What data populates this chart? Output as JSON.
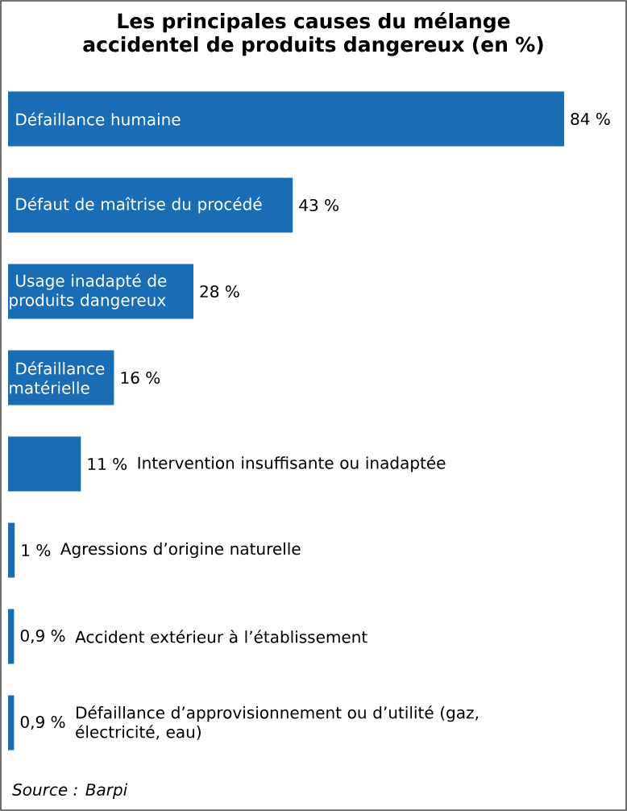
{
  "chart_data": {
    "type": "bar",
    "orientation": "horizontal",
    "title": "Les principales causes du mélange accidentel de produits dangereux (en %)",
    "categories": [
      "Défaillance humaine",
      "Défaut de maîtrise du procédé",
      "Usage inadapté de produits dangereux",
      "Défaillance matérielle",
      "Intervention insuffisante ou inadaptée",
      "Agressions d’origine naturelle",
      "Accident extérieur à l’établissement",
      "Défaillance d’approvisionnement ou d’utilité (gaz, électricité, eau)"
    ],
    "values": [
      84,
      43,
      28,
      16,
      11,
      1,
      0.9,
      0.9
    ],
    "value_labels": [
      "84 %",
      "43 %",
      "28 %",
      "16 %",
      "11 %",
      "1 %",
      "0,9 %",
      "0,9 %"
    ],
    "color": "#1a6db5",
    "annotations": [
      "*Source : Barpi*"
    ]
  }
}
